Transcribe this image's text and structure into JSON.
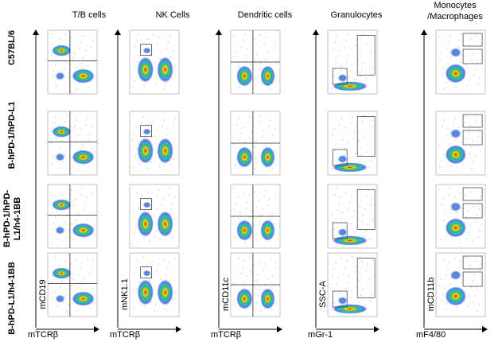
{
  "columns": [
    {
      "title": "T/B cells",
      "x_axis": "mTCRβ",
      "y_axis": "mCD19"
    },
    {
      "title": "NK Cells",
      "x_axis": "mTCRβ",
      "y_axis": "mNK1.1"
    },
    {
      "title": "Dendritic cells",
      "x_axis": "mTCRβ",
      "y_axis": "mCD11c"
    },
    {
      "title": "Granulocytes",
      "x_axis": "mGr-1",
      "y_axis": "SSC-A"
    },
    {
      "title_lines": [
        "Monocytes",
        "/Macrophages"
      ],
      "x_axis": "mF4/80",
      "y_axis": "mCD11b"
    }
  ],
  "rows": [
    "C57BL/6",
    "B-hPD-1/hPD-L1",
    "B-hPD-1/hPD-\nL1/h4-1BB",
    "B-hPD-L1/h4-1BB"
  ]
}
